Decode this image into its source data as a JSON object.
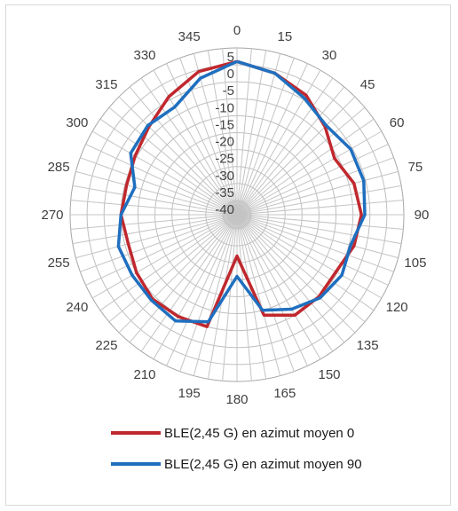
{
  "chart_data": {
    "type": "polar-line",
    "title": "",
    "angle_ticks": [
      "0",
      "15",
      "30",
      "45",
      "60",
      "75",
      "90",
      "105",
      "120",
      "135",
      "150",
      "165",
      "180",
      "195",
      "210",
      "225",
      "240",
      "255",
      "270",
      "285",
      "300",
      "315",
      "330",
      "345"
    ],
    "radial_ticks": [
      "5",
      "0",
      "-5",
      "-10",
      "-15",
      "-20",
      "-25",
      "-30",
      "-35",
      "-40"
    ],
    "rlim": [
      -40,
      5
    ],
    "grid": true,
    "legend_position": "bottom",
    "series": [
      {
        "name": "BLE(2,45 G) en azimut moyen 0",
        "color": "#c0282e",
        "angles": [
          0,
          15,
          30,
          45,
          60,
          75,
          90,
          105,
          120,
          135,
          150,
          165,
          180,
          195,
          210,
          225,
          240,
          255,
          270,
          285,
          300,
          315,
          330,
          345
        ],
        "values": [
          1,
          -1,
          -3.5,
          -7.5,
          -11,
          -8.5,
          -7.5,
          -8.5,
          -10.5,
          -10,
          -10,
          -13.5,
          -32,
          -10,
          -9.5,
          -9,
          -10,
          -11,
          -10,
          -10.5,
          -9.5,
          -7.5,
          -4,
          -0.5
        ]
      },
      {
        "name": "BLE(2,45 G) en azimut moyen 90",
        "color": "#1f6fbf",
        "angles": [
          0,
          15,
          30,
          45,
          60,
          75,
          90,
          105,
          120,
          135,
          150,
          165,
          180,
          195,
          210,
          225,
          240,
          255,
          270,
          285,
          300,
          315,
          330,
          345
        ],
        "values": [
          1,
          -1,
          -4.5,
          -7,
          -5.5,
          -5.5,
          -6.5,
          -9.5,
          -8.5,
          -9.5,
          -12,
          -15,
          -26,
          -11.5,
          -8,
          -8.5,
          -8.5,
          -8,
          -10,
          -13,
          -8,
          -7,
          -7.5,
          -2.5
        ]
      }
    ]
  }
}
